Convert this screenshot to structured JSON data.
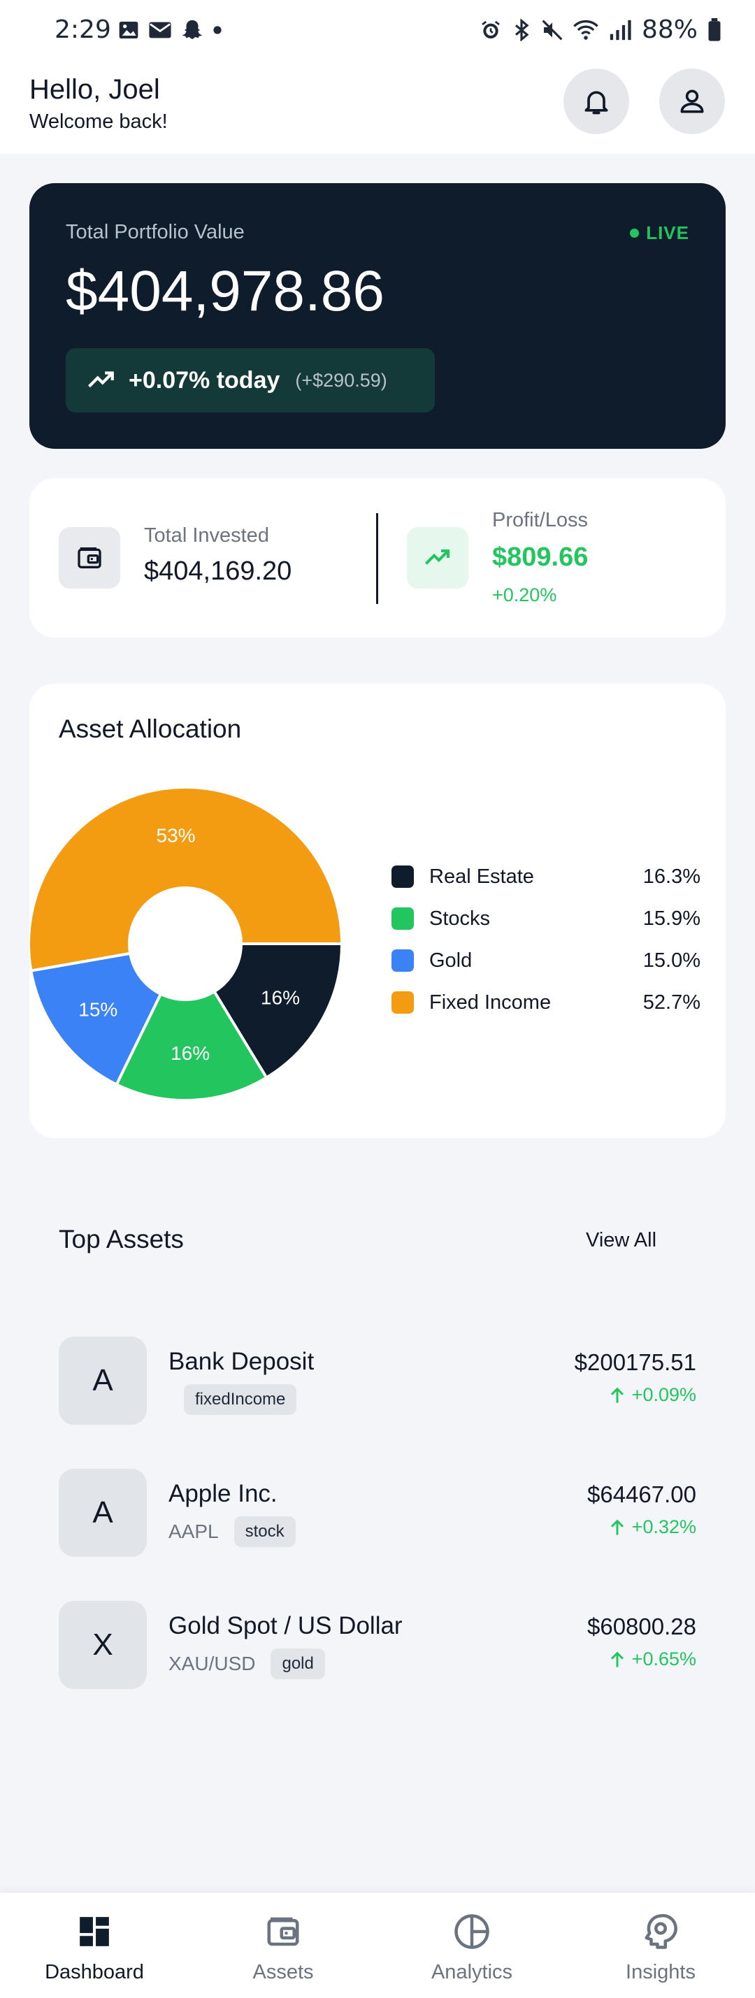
{
  "status_bar": {
    "time": "2:29",
    "battery": "88%"
  },
  "header": {
    "greeting": "Hello, Joel",
    "subtitle": "Welcome back!"
  },
  "portfolio": {
    "label": "Total Portfolio Value",
    "live_label": "LIVE",
    "value": "$404,978.86",
    "change_pct": "+0.07% today",
    "change_amt": "(+$290.59)"
  },
  "invested": {
    "label": "Total Invested",
    "value": "$404,169.20",
    "pl_label": "Profit/Loss",
    "pl_value": "$809.66",
    "pl_pct": "+0.20%"
  },
  "allocation": {
    "title": "Asset Allocation",
    "legend": [
      {
        "name": "Real Estate",
        "value": "16.3%",
        "color": "#0f1c2b"
      },
      {
        "name": "Stocks",
        "value": "15.9%",
        "color": "#22c55e"
      },
      {
        "name": "Gold",
        "value": "15.0%",
        "color": "#3b82f6"
      },
      {
        "name": "Fixed Income",
        "value": "52.7%",
        "color": "#f39c12"
      }
    ]
  },
  "chart_data": {
    "type": "pie",
    "categories": [
      "Real Estate",
      "Stocks",
      "Gold",
      "Fixed Income"
    ],
    "values": [
      16.3,
      15.9,
      15.0,
      52.7
    ],
    "slice_labels": [
      "16%",
      "16%",
      "15%",
      "53%"
    ],
    "colors": [
      "#0f1c2b",
      "#22c55e",
      "#3b82f6",
      "#f39c12"
    ],
    "title": "Asset Allocation",
    "legend_position": "right",
    "donut": true
  },
  "top_assets": {
    "title": "Top Assets",
    "view_all": "View All",
    "items": [
      {
        "avatar": "A",
        "name": "Bank Deposit",
        "symbol": "",
        "tag": "fixedIncome",
        "price": "$200175.51",
        "change": "+0.09%"
      },
      {
        "avatar": "A",
        "name": "Apple Inc.",
        "symbol": "AAPL",
        "tag": "stock",
        "price": "$64467.00",
        "change": "+0.32%"
      },
      {
        "avatar": "X",
        "name": "Gold Spot / US Dollar",
        "symbol": "XAU/USD",
        "tag": "gold",
        "price": "$60800.28",
        "change": "+0.65%"
      }
    ]
  },
  "nav": {
    "items": [
      {
        "label": "Dashboard",
        "icon": "dashboard-icon"
      },
      {
        "label": "Assets",
        "icon": "wallet-icon"
      },
      {
        "label": "Analytics",
        "icon": "pie-chart-icon"
      },
      {
        "label": "Insights",
        "icon": "brain-icon"
      }
    ]
  }
}
